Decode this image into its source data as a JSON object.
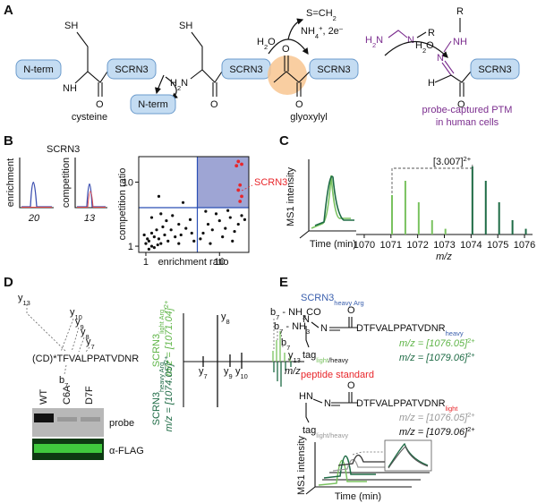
{
  "A": {
    "label": "A",
    "cysteine": {
      "sh": "SH",
      "nterm": "N-term",
      "nh": "NH",
      "protein": "SCRN3",
      "o": "O",
      "name": "cysteine"
    },
    "leaving": "N-term",
    "amine": {
      "sh": "SH",
      "h2n": [
        "H",
        "2",
        "N"
      ],
      "protein": "SCRN3",
      "o": "O"
    },
    "reagents1": {
      "h2o": [
        "H",
        "2",
        "O"
      ],
      "byproduct": [
        "S=CH",
        "2"
      ],
      "cofactors": [
        "NH",
        "4",
        "+",
        ", 2e",
        "–"
      ]
    },
    "glyoxylyl": {
      "o_top": "O",
      "protein": "SCRN3",
      "o": "O",
      "name": "glyoxylyl"
    },
    "probe": {
      "h2n": [
        "H",
        "2",
        "N"
      ],
      "n": "N",
      "r": "R"
    },
    "reagents2": {
      "h2o": [
        "H",
        "2",
        "O"
      ]
    },
    "product": {
      "r": "R",
      "nh": "NH",
      "n": "N",
      "h": "H",
      "protein": "SCRN3",
      "o": "O"
    },
    "caption": [
      "probe-captured PTM",
      "in human cells"
    ]
  },
  "B": {
    "label": "B",
    "protein": "SCRN3",
    "enrichment": "enrichment",
    "enrichment_value": "20",
    "competition": "competition",
    "competition_value": "13",
    "scatter": {
      "type": "scatter",
      "xlabel": "enrichment ratio",
      "ylabel": "competition ratio",
      "log": true,
      "xlim": [
        0.8,
        25
      ],
      "ylim": [
        0.8,
        25
      ],
      "xticks": [
        1,
        10
      ],
      "yticks": [
        1,
        10
      ],
      "thresholds": {
        "x": 5,
        "y": 4
      },
      "quadrant_color": "#8d95cc",
      "threshold_color": "#2a4fb5",
      "points": {
        "color": "#111111",
        "x": [
          1.1,
          1.2,
          1.3,
          1.0,
          1.5,
          1.4,
          1.6,
          1.2,
          1.8,
          2.0,
          1.1,
          1.3,
          2.2,
          1.7,
          2.5,
          1.9,
          3.0,
          2.8,
          1.05,
          1.45,
          3.5,
          4.0,
          2.3,
          1.6,
          1.2,
          0.95,
          4.5,
          6.0,
          7.0,
          8.0,
          10,
          12,
          9.0,
          14,
          16,
          11,
          18,
          6.5,
          13,
          20,
          5.5,
          7.5,
          15,
          22,
          3.2,
          1.5,
          2.8,
          4.2
        ],
        "y": [
          1.2,
          1.0,
          1.4,
          1.1,
          1.3,
          1.8,
          1.1,
          1.6,
          1.5,
          1.2,
          0.9,
          0.95,
          1.8,
          2.0,
          1.4,
          2.5,
          1.5,
          2.2,
          1.3,
          1.05,
          1.9,
          2.6,
          3.0,
          3.2,
          2.8,
          1.5,
          1.2,
          1.6,
          2.2,
          1.8,
          2.5,
          1.9,
          3.2,
          2.8,
          1.7,
          1.4,
          2.2,
          3.5,
          3.6,
          3.0,
          1.3,
          1.1,
          1.2,
          2.6,
          4.8,
          6.0,
          1.1,
          1.6
        ]
      },
      "hits": {
        "name": "SCRN3",
        "color": "#e8262b",
        "x": [
          18,
          20,
          17,
          19,
          18,
          20,
          19
        ],
        "y": [
          21,
          19,
          18,
          9,
          7.5,
          6,
          5
        ]
      }
    }
  },
  "C": {
    "label": "C",
    "ylabel": "MS1 intensity",
    "xlabel": "Time (min)",
    "spacing": [
      "[3.007]",
      "2+"
    ],
    "mz_label": "m/z",
    "xlim": [
      1069.7,
      1076.3
    ],
    "xticks": [
      1070,
      1071,
      1072,
      1073,
      1074,
      1075,
      1076
    ],
    "light": {
      "color": "#79c25f",
      "mz": [
        1071.04,
        1071.54,
        1072.04,
        1072.54,
        1073.04
      ],
      "intensity": [
        0.55,
        0.75,
        0.45,
        0.2,
        0.08
      ]
    },
    "heavy": {
      "color": "#1e6b45",
      "mz": [
        1074.05,
        1074.55,
        1075.05,
        1075.55,
        1076.05
      ],
      "intensity": [
        0.95,
        0.75,
        0.45,
        0.2,
        0.08
      ]
    }
  },
  "D": {
    "label": "D",
    "peptide": "(CD)*TFVALPPATVDNR",
    "ions": [
      [
        "y",
        "13"
      ],
      [
        "y",
        "10"
      ],
      [
        "y",
        "9"
      ],
      [
        "y",
        "8"
      ],
      [
        "y",
        "7"
      ],
      [
        "b",
        "7"
      ]
    ],
    "blot": {
      "lanes": [
        "WT",
        "C6A",
        "D7F"
      ],
      "rows": [
        "probe",
        "α-FLAG"
      ]
    },
    "spectrum": {
      "peaks": [
        [
          "y",
          "8"
        ],
        [
          "y",
          "7"
        ],
        [
          "y",
          "9"
        ],
        [
          "y",
          "10"
        ],
        [
          "b",
          "7",
          " - NH",
          "3",
          "CO"
        ],
        [
          "b",
          "7",
          " - NH",
          "3"
        ],
        [
          "b",
          "7"
        ],
        [
          "y",
          "13"
        ]
      ],
      "mz_label": "m/z",
      "light": {
        "name": [
          "SCRN3",
          "light Arg"
        ],
        "mz": [
          "m/z = [1071.04]",
          "2+"
        ]
      },
      "heavy": {
        "name": [
          "SCRN3",
          "heavy Arg"
        ],
        "mz": [
          "m/z = [1074.05]",
          "2+"
        ]
      }
    }
  },
  "E": {
    "label": "E",
    "heavy": {
      "protein": [
        "SCRN3",
        "heavy Arg"
      ],
      "n1": "N",
      "n2": "N",
      "o": "O",
      "peptide": [
        "DTFVALPPATVDNR",
        "heavy"
      ],
      "tag": [
        "tag",
        "light",
        "/heavy"
      ],
      "mz_light": [
        "m/z = [1076.05]",
        "2+"
      ],
      "mz_heavy": [
        "m/z = [1079.06]",
        "2+"
      ]
    },
    "standard": {
      "title": "peptide standard",
      "hn": "HN",
      "n": "N",
      "o": "O",
      "peptide": [
        "DTFVALPPATVDNR",
        "light"
      ],
      "tag": [
        "tag",
        "light/heavy"
      ],
      "mz_light": [
        "m/z = [1076.05]",
        "2+"
      ],
      "mz_heavy": [
        "m/z = [1079.06]",
        "2+"
      ]
    },
    "ylabel": "MS1 intensity",
    "xlabel": "Time (min)"
  }
}
